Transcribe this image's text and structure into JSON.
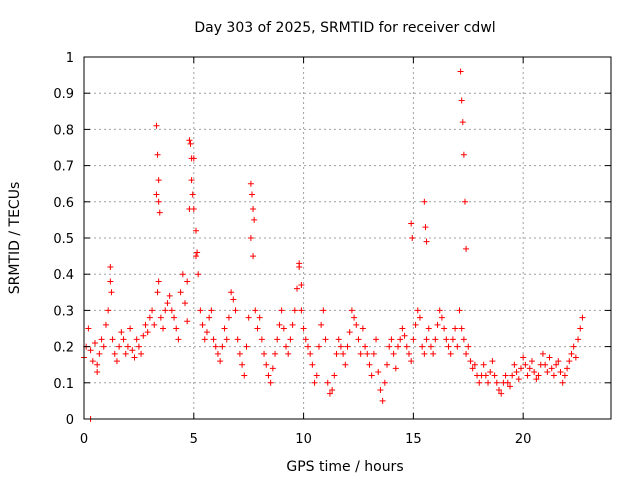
{
  "chart_data": {
    "type": "scatter",
    "title": "Day 303 of 2025, SRMTID for receiver cdwl",
    "xlabel": "GPS time / hours",
    "ylabel": "SRMTID / TECUs",
    "xlim": [
      0,
      24
    ],
    "ylim": [
      0,
      1
    ],
    "xticks": [
      "0",
      "5",
      "10",
      "15",
      "20"
    ],
    "yticks": [
      "0",
      "0.1",
      "0.2",
      "0.3",
      "0.4",
      "0.5",
      "0.6",
      "0.7",
      "0.8",
      "0.9",
      "1"
    ],
    "grid": true,
    "marker": "plus",
    "color": "#ff0000",
    "series": [
      {
        "name": "SRMTID",
        "x": [
          0.0,
          0.1,
          0.2,
          0.3,
          0.4,
          0.5,
          0.6,
          0.7,
          0.8,
          0.9,
          1.0,
          1.1,
          1.2,
          1.3,
          1.4,
          1.5,
          1.6,
          1.7,
          1.8,
          1.9,
          2.0,
          2.1,
          2.2,
          2.3,
          2.4,
          2.5,
          2.6,
          2.7,
          2.8,
          2.9,
          3.0,
          3.1,
          3.2,
          3.3,
          3.4,
          3.5,
          3.6,
          3.7,
          3.8,
          3.9,
          4.0,
          4.1,
          4.2,
          4.3,
          4.4,
          4.5,
          4.6,
          4.7,
          4.8,
          4.9,
          5.0,
          5.1,
          5.2,
          5.3,
          5.4,
          5.5,
          5.6,
          5.7,
          5.8,
          5.9,
          6.0,
          6.1,
          6.2,
          6.3,
          6.4,
          6.5,
          6.6,
          6.7,
          6.8,
          6.9,
          7.0,
          7.1,
          7.2,
          7.3,
          7.4,
          7.5,
          7.6,
          7.7,
          7.8,
          7.9,
          8.0,
          8.1,
          8.2,
          8.3,
          8.4,
          8.5,
          8.6,
          8.7,
          8.8,
          8.9,
          9.0,
          9.1,
          9.2,
          9.3,
          9.4,
          9.5,
          9.6,
          9.7,
          9.8,
          9.9,
          10.0,
          10.1,
          10.2,
          10.3,
          10.4,
          10.5,
          10.6,
          10.7,
          10.8,
          10.9,
          11.0,
          11.1,
          11.2,
          11.3,
          11.4,
          11.5,
          11.6,
          11.7,
          11.8,
          11.9,
          12.0,
          12.1,
          12.2,
          12.3,
          12.4,
          12.5,
          12.6,
          12.7,
          12.8,
          12.9,
          13.0,
          13.1,
          13.2,
          13.3,
          13.4,
          13.5,
          13.6,
          13.7,
          13.8,
          13.9,
          14.0,
          14.1,
          14.2,
          14.3,
          14.4,
          14.5,
          14.6,
          14.7,
          14.8,
          14.9,
          15.0,
          15.1,
          15.2,
          15.3,
          15.4,
          15.5,
          15.6,
          15.7,
          15.8,
          15.9,
          16.0,
          16.1,
          16.2,
          16.3,
          16.4,
          16.5,
          16.6,
          16.7,
          16.8,
          16.9,
          17.0,
          17.1,
          17.2,
          17.3,
          17.4,
          17.5,
          17.6,
          17.7,
          17.8,
          17.9,
          18.0,
          18.1,
          18.2,
          18.3,
          18.4,
          18.5,
          18.6,
          18.7,
          18.8,
          18.9,
          19.0,
          19.1,
          19.2,
          19.3,
          19.4,
          19.5,
          19.6,
          19.7,
          19.8,
          19.9,
          20.0,
          20.1,
          20.2,
          20.3,
          20.4,
          20.5,
          20.6,
          20.7,
          20.8,
          20.9,
          21.0,
          21.1,
          21.2,
          21.3,
          21.4,
          21.5,
          21.6,
          21.7,
          21.8,
          21.9,
          22.0,
          22.1,
          22.2,
          22.3,
          22.4,
          22.5,
          22.6,
          22.7,
          0.3,
          0.6,
          1.2,
          1.25,
          3.3,
          3.35,
          3.4,
          3.45,
          3.4,
          3.35,
          4.8,
          4.85,
          4.9,
          4.95,
          5.0,
          5.1,
          5.15,
          4.7,
          7.6,
          7.65,
          7.7,
          7.75,
          9.8,
          9.9,
          14.9,
          14.95,
          15.5,
          15.55,
          15.6,
          17.15,
          17.2,
          17.25,
          17.3,
          17.35,
          17.4
        ],
        "y": [
          0.17,
          0.2,
          0.25,
          0.19,
          0.16,
          0.21,
          0.15,
          0.18,
          0.22,
          0.2,
          0.26,
          0.3,
          0.38,
          0.22,
          0.18,
          0.16,
          0.2,
          0.24,
          0.22,
          0.18,
          0.2,
          0.25,
          0.19,
          0.17,
          0.22,
          0.2,
          0.18,
          0.23,
          0.26,
          0.24,
          0.28,
          0.3,
          0.26,
          0.62,
          0.6,
          0.28,
          0.25,
          0.3,
          0.32,
          0.34,
          0.3,
          0.28,
          0.25,
          0.22,
          0.35,
          0.4,
          0.32,
          0.27,
          0.58,
          0.66,
          0.72,
          0.45,
          0.4,
          0.3,
          0.26,
          0.22,
          0.24,
          0.28,
          0.3,
          0.22,
          0.2,
          0.18,
          0.16,
          0.2,
          0.25,
          0.22,
          0.28,
          0.35,
          0.33,
          0.3,
          0.22,
          0.18,
          0.15,
          0.12,
          0.2,
          0.28,
          0.5,
          0.45,
          0.3,
          0.25,
          0.28,
          0.22,
          0.18,
          0.15,
          0.12,
          0.1,
          0.14,
          0.18,
          0.22,
          0.26,
          0.3,
          0.25,
          0.2,
          0.18,
          0.22,
          0.26,
          0.3,
          0.36,
          0.42,
          0.3,
          0.25,
          0.22,
          0.2,
          0.18,
          0.15,
          0.1,
          0.12,
          0.2,
          0.26,
          0.3,
          0.22,
          0.1,
          0.07,
          0.08,
          0.12,
          0.18,
          0.22,
          0.2,
          0.18,
          0.15,
          0.2,
          0.24,
          0.3,
          0.28,
          0.26,
          0.22,
          0.18,
          0.25,
          0.2,
          0.18,
          0.15,
          0.12,
          0.18,
          0.22,
          0.13,
          0.08,
          0.05,
          0.1,
          0.15,
          0.2,
          0.22,
          0.18,
          0.14,
          0.2,
          0.22,
          0.25,
          0.23,
          0.2,
          0.18,
          0.16,
          0.22,
          0.26,
          0.3,
          0.28,
          0.2,
          0.18,
          0.22,
          0.25,
          0.2,
          0.18,
          0.22,
          0.26,
          0.3,
          0.28,
          0.25,
          0.22,
          0.2,
          0.18,
          0.22,
          0.25,
          0.2,
          0.3,
          0.25,
          0.22,
          0.18,
          0.2,
          0.16,
          0.14,
          0.15,
          0.12,
          0.1,
          0.12,
          0.15,
          0.12,
          0.1,
          0.13,
          0.16,
          0.12,
          0.1,
          0.08,
          0.07,
          0.1,
          0.12,
          0.1,
          0.09,
          0.12,
          0.15,
          0.13,
          0.11,
          0.14,
          0.17,
          0.15,
          0.12,
          0.14,
          0.16,
          0.13,
          0.11,
          0.12,
          0.15,
          0.18,
          0.15,
          0.13,
          0.17,
          0.14,
          0.12,
          0.15,
          0.16,
          0.13,
          0.1,
          0.12,
          0.14,
          0.16,
          0.18,
          0.2,
          0.17,
          0.22,
          0.25,
          0.28,
          0.0,
          0.13,
          0.42,
          0.35,
          0.81,
          0.73,
          0.66,
          0.57,
          0.38,
          0.35,
          0.77,
          0.76,
          0.72,
          0.62,
          0.58,
          0.52,
          0.46,
          0.38,
          0.65,
          0.62,
          0.58,
          0.55,
          0.43,
          0.37,
          0.54,
          0.5,
          0.6,
          0.53,
          0.49,
          0.96,
          0.88,
          0.82,
          0.73,
          0.6,
          0.47
        ]
      }
    ]
  }
}
